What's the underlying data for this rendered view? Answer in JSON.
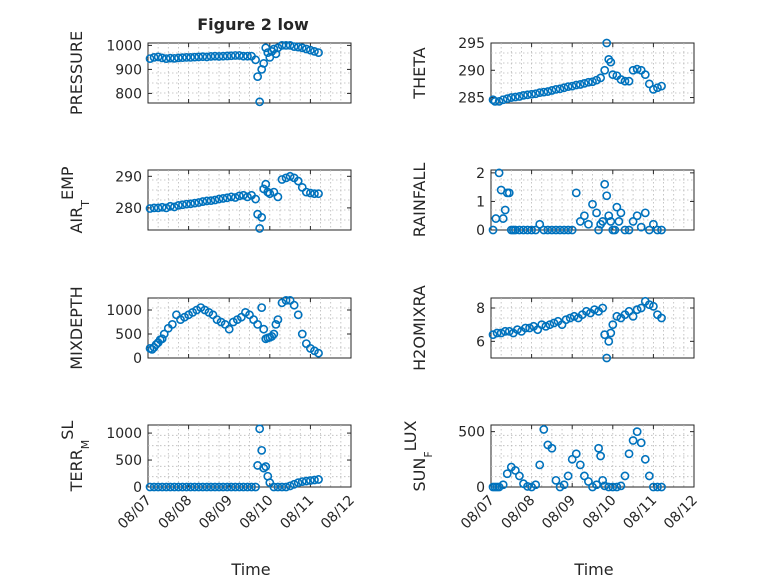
{
  "figure": {
    "title": "Figure 2 low",
    "xlabel": "Time",
    "x_tick_labels": [
      "08/07",
      "08/08",
      "08/09",
      "08/10",
      "08/11",
      "08/12"
    ],
    "marker_color": "#0072bd"
  },
  "chart_data": [
    {
      "type": "scatter",
      "ylabel": "PRESSURE",
      "ylim": [
        760,
        1010
      ],
      "yticks": [
        800,
        900,
        1000
      ],
      "xlim": [
        0,
        5
      ],
      "grid": true,
      "series": [
        {
          "marker": "circle",
          "color": "#0072bd",
          "x": [
            0.05,
            0.15,
            0.25,
            0.35,
            0.45,
            0.55,
            0.65,
            0.75,
            0.85,
            0.95,
            1.05,
            1.15,
            1.25,
            1.35,
            1.45,
            1.55,
            1.65,
            1.75,
            1.85,
            1.95,
            2.05,
            2.15,
            2.25,
            2.35,
            2.45,
            2.55,
            2.65,
            2.7,
            2.75,
            2.8,
            2.85,
            2.9,
            2.95,
            3.0,
            3.05,
            3.1,
            3.15,
            3.2,
            3.3,
            3.4,
            3.5,
            3.6,
            3.7,
            3.8,
            3.9,
            4.0,
            4.1,
            4.2
          ],
          "y": [
            945,
            950,
            952,
            948,
            945,
            947,
            946,
            948,
            949,
            950,
            950,
            951,
            952,
            953,
            952,
            954,
            955,
            954,
            955,
            956,
            957,
            958,
            958,
            955,
            955,
            955,
            940,
            870,
            765,
            900,
            925,
            990,
            970,
            950,
            975,
            985,
            965,
            990,
            1000,
            1000,
            1000,
            995,
            993,
            990,
            985,
            980,
            975,
            970
          ]
        }
      ]
    },
    {
      "type": "scatter",
      "ylabel": "THETA",
      "ylim": [
        284,
        295
      ],
      "yticks": [
        285,
        290,
        295
      ],
      "xlim": [
        0,
        5
      ],
      "grid": true,
      "series": [
        {
          "marker": "circle",
          "color": "#0072bd",
          "x": [
            0.05,
            0.1,
            0.2,
            0.3,
            0.4,
            0.5,
            0.6,
            0.7,
            0.8,
            0.9,
            1.0,
            1.1,
            1.2,
            1.3,
            1.4,
            1.5,
            1.6,
            1.7,
            1.8,
            1.9,
            2.0,
            2.1,
            2.2,
            2.3,
            2.4,
            2.5,
            2.6,
            2.7,
            2.8,
            2.85,
            2.9,
            2.95,
            3.0,
            3.1,
            3.2,
            3.3,
            3.4,
            3.5,
            3.6,
            3.7,
            3.8,
            3.9,
            4.0,
            4.1,
            4.2
          ],
          "y": [
            284.6,
            284.3,
            284.3,
            284.6,
            284.8,
            285.0,
            285.1,
            285.2,
            285.4,
            285.5,
            285.6,
            285.7,
            285.9,
            286.0,
            286.1,
            286.3,
            286.5,
            286.6,
            286.8,
            287.0,
            287.1,
            287.3,
            287.4,
            287.6,
            287.8,
            287.9,
            288.2,
            288.6,
            290.0,
            295.0,
            292.0,
            291.5,
            289.2,
            289.0,
            288.3,
            288.0,
            288.0,
            290.0,
            290.2,
            290.0,
            289.2,
            287.5,
            286.5,
            286.8,
            287.1
          ]
        }
      ]
    },
    {
      "type": "scatter",
      "ylabel": "AIR_TEMP",
      "ylim": [
        273,
        292
      ],
      "yticks": [
        280,
        290
      ],
      "xlim": [
        0,
        5
      ],
      "grid": true,
      "series": [
        {
          "marker": "circle",
          "color": "#0072bd",
          "x": [
            0.05,
            0.15,
            0.25,
            0.35,
            0.45,
            0.55,
            0.65,
            0.75,
            0.85,
            0.95,
            1.05,
            1.15,
            1.25,
            1.35,
            1.45,
            1.55,
            1.65,
            1.75,
            1.85,
            1.95,
            2.05,
            2.15,
            2.25,
            2.35,
            2.45,
            2.55,
            2.65,
            2.7,
            2.75,
            2.8,
            2.85,
            2.9,
            2.95,
            3.0,
            3.1,
            3.2,
            3.3,
            3.4,
            3.5,
            3.6,
            3.7,
            3.8,
            3.9,
            4.0,
            4.1,
            4.2
          ],
          "y": [
            279.8,
            280.0,
            280.0,
            280.2,
            280.0,
            280.5,
            280.3,
            280.8,
            281.0,
            281.2,
            281.3,
            281.5,
            281.7,
            282.0,
            282.2,
            282.3,
            282.5,
            282.8,
            283.0,
            283.2,
            283.5,
            283.3,
            283.8,
            284.0,
            283.5,
            284.0,
            282.8,
            278.0,
            273.5,
            277.0,
            286.0,
            287.5,
            285.0,
            284.5,
            285.0,
            283.5,
            289.0,
            289.5,
            290.0,
            289.5,
            288.5,
            286.5,
            285.0,
            284.7,
            284.5,
            284.5
          ]
        }
      ]
    },
    {
      "type": "scatter",
      "ylabel": "RAINFALL",
      "ylim": [
        0,
        2.1
      ],
      "yticks": [
        0,
        1,
        2
      ],
      "xlim": [
        0,
        5
      ],
      "grid": true,
      "series": [
        {
          "marker": "circle",
          "color": "#0072bd",
          "x": [
            0.05,
            0.12,
            0.2,
            0.25,
            0.3,
            0.35,
            0.4,
            0.45,
            0.5,
            0.55,
            0.6,
            0.7,
            0.8,
            0.9,
            1.0,
            1.1,
            1.2,
            1.3,
            1.4,
            1.5,
            1.6,
            1.7,
            1.8,
            1.9,
            2.0,
            2.1,
            2.2,
            2.3,
            2.4,
            2.5,
            2.6,
            2.65,
            2.7,
            2.75,
            2.8,
            2.85,
            2.9,
            2.95,
            3.0,
            3.05,
            3.1,
            3.15,
            3.2,
            3.3,
            3.4,
            3.5,
            3.6,
            3.7,
            3.8,
            3.9,
            4.0,
            4.1,
            4.2
          ],
          "y": [
            0,
            0.4,
            2.0,
            1.4,
            0.4,
            0.7,
            1.3,
            1.3,
            0,
            0,
            0,
            0,
            0,
            0,
            0,
            0,
            0.2,
            0,
            0,
            0,
            0,
            0,
            0,
            0,
            0,
            1.3,
            0.3,
            0.5,
            0.2,
            0.9,
            0.6,
            0,
            0.2,
            0.3,
            1.6,
            1.2,
            0.5,
            0.3,
            0,
            0,
            0.8,
            0.3,
            0.6,
            0,
            0,
            0.3,
            0.5,
            0.1,
            0.6,
            0,
            0.2,
            0,
            0
          ]
        }
      ]
    },
    {
      "type": "scatter",
      "ylabel": "MIXDEPTH",
      "ylim": [
        0,
        1250
      ],
      "yticks": [
        0,
        500,
        1000
      ],
      "xlim": [
        0,
        5
      ],
      "grid": true,
      "series": [
        {
          "marker": "circle",
          "color": "#0072bd",
          "x": [
            0.05,
            0.1,
            0.15,
            0.2,
            0.25,
            0.3,
            0.35,
            0.4,
            0.5,
            0.6,
            0.7,
            0.8,
            0.9,
            1.0,
            1.1,
            1.2,
            1.3,
            1.4,
            1.5,
            1.6,
            1.7,
            1.8,
            1.9,
            2.0,
            2.1,
            2.2,
            2.3,
            2.4,
            2.5,
            2.6,
            2.7,
            2.8,
            2.85,
            2.9,
            2.95,
            3.0,
            3.05,
            3.1,
            3.15,
            3.2,
            3.3,
            3.4,
            3.5,
            3.6,
            3.7,
            3.8,
            3.9,
            4.0,
            4.1,
            4.2
          ],
          "y": [
            200,
            180,
            220,
            280,
            320,
            380,
            400,
            500,
            620,
            700,
            900,
            800,
            850,
            900,
            950,
            1000,
            1050,
            1000,
            950,
            900,
            800,
            750,
            700,
            600,
            750,
            800,
            850,
            950,
            900,
            800,
            700,
            1050,
            600,
            400,
            420,
            430,
            450,
            500,
            700,
            800,
            1150,
            1200,
            1200,
            1100,
            900,
            500,
            300,
            200,
            150,
            100
          ]
        }
      ]
    },
    {
      "type": "scatter",
      "ylabel": "H2OMIXRA",
      "ylim": [
        5,
        8.6
      ],
      "yticks": [
        6,
        8
      ],
      "xlim": [
        0,
        5
      ],
      "grid": true,
      "series": [
        {
          "marker": "circle",
          "color": "#0072bd",
          "x": [
            0.05,
            0.15,
            0.25,
            0.35,
            0.45,
            0.55,
            0.65,
            0.75,
            0.85,
            0.95,
            1.05,
            1.15,
            1.25,
            1.35,
            1.45,
            1.55,
            1.65,
            1.75,
            1.85,
            1.95,
            2.05,
            2.15,
            2.25,
            2.35,
            2.45,
            2.55,
            2.65,
            2.75,
            2.8,
            2.85,
            2.9,
            2.95,
            3.0,
            3.1,
            3.2,
            3.3,
            3.4,
            3.5,
            3.6,
            3.7,
            3.8,
            3.9,
            4.0,
            4.1,
            4.2
          ],
          "y": [
            6.4,
            6.5,
            6.5,
            6.6,
            6.6,
            6.5,
            6.7,
            6.6,
            6.8,
            6.8,
            6.9,
            6.7,
            7.0,
            6.9,
            7.0,
            7.1,
            7.2,
            7.0,
            7.3,
            7.4,
            7.5,
            7.4,
            7.6,
            7.8,
            7.7,
            7.9,
            7.8,
            8.0,
            6.4,
            5.0,
            6.0,
            6.5,
            7.0,
            7.5,
            7.4,
            7.6,
            7.8,
            7.5,
            7.9,
            8.0,
            8.4,
            8.2,
            8.1,
            7.6,
            7.4
          ]
        }
      ]
    },
    {
      "type": "scatter",
      "ylabel": "TERR_MSL",
      "ylim": [
        0,
        1150
      ],
      "yticks": [
        0,
        500,
        1000
      ],
      "xlim": [
        0,
        5
      ],
      "grid": true,
      "series": [
        {
          "marker": "circle",
          "color": "#0072bd",
          "x": [
            0.05,
            0.15,
            0.25,
            0.35,
            0.45,
            0.55,
            0.65,
            0.75,
            0.85,
            0.95,
            1.05,
            1.15,
            1.25,
            1.35,
            1.45,
            1.55,
            1.65,
            1.75,
            1.85,
            1.95,
            2.05,
            2.15,
            2.25,
            2.35,
            2.45,
            2.55,
            2.65,
            2.7,
            2.75,
            2.8,
            2.85,
            2.9,
            2.95,
            3.0,
            3.1,
            3.2,
            3.3,
            3.4,
            3.5,
            3.6,
            3.7,
            3.8,
            3.9,
            4.0,
            4.1,
            4.2
          ],
          "y": [
            0,
            0,
            0,
            0,
            0,
            0,
            0,
            0,
            0,
            0,
            0,
            0,
            0,
            0,
            0,
            0,
            0,
            0,
            0,
            0,
            0,
            0,
            0,
            0,
            0,
            0,
            0,
            400,
            1080,
            680,
            350,
            380,
            200,
            80,
            0,
            0,
            0,
            0,
            20,
            50,
            80,
            100,
            110,
            120,
            130,
            140
          ]
        }
      ]
    },
    {
      "type": "scatter",
      "ylabel": "SUN_FLUX",
      "ylim": [
        0,
        560
      ],
      "yticks": [
        0,
        500
      ],
      "xlim": [
        0,
        5
      ],
      "grid": true,
      "series": [
        {
          "marker": "circle",
          "color": "#0072bd",
          "x": [
            0.05,
            0.1,
            0.15,
            0.2,
            0.3,
            0.4,
            0.5,
            0.6,
            0.7,
            0.8,
            0.9,
            1.0,
            1.1,
            1.2,
            1.3,
            1.4,
            1.5,
            1.6,
            1.7,
            1.8,
            1.9,
            2.0,
            2.1,
            2.2,
            2.3,
            2.4,
            2.5,
            2.6,
            2.65,
            2.7,
            2.75,
            2.8,
            2.9,
            3.0,
            3.1,
            3.2,
            3.3,
            3.4,
            3.5,
            3.6,
            3.7,
            3.8,
            3.9,
            4.0,
            4.1,
            4.2
          ],
          "y": [
            0,
            0,
            0,
            0,
            20,
            120,
            180,
            150,
            100,
            30,
            5,
            0,
            20,
            200,
            520,
            380,
            350,
            60,
            0,
            20,
            100,
            250,
            300,
            200,
            100,
            50,
            0,
            20,
            350,
            280,
            60,
            10,
            0,
            0,
            0,
            10,
            100,
            300,
            420,
            500,
            400,
            250,
            100,
            0,
            0,
            0
          ]
        }
      ]
    }
  ]
}
